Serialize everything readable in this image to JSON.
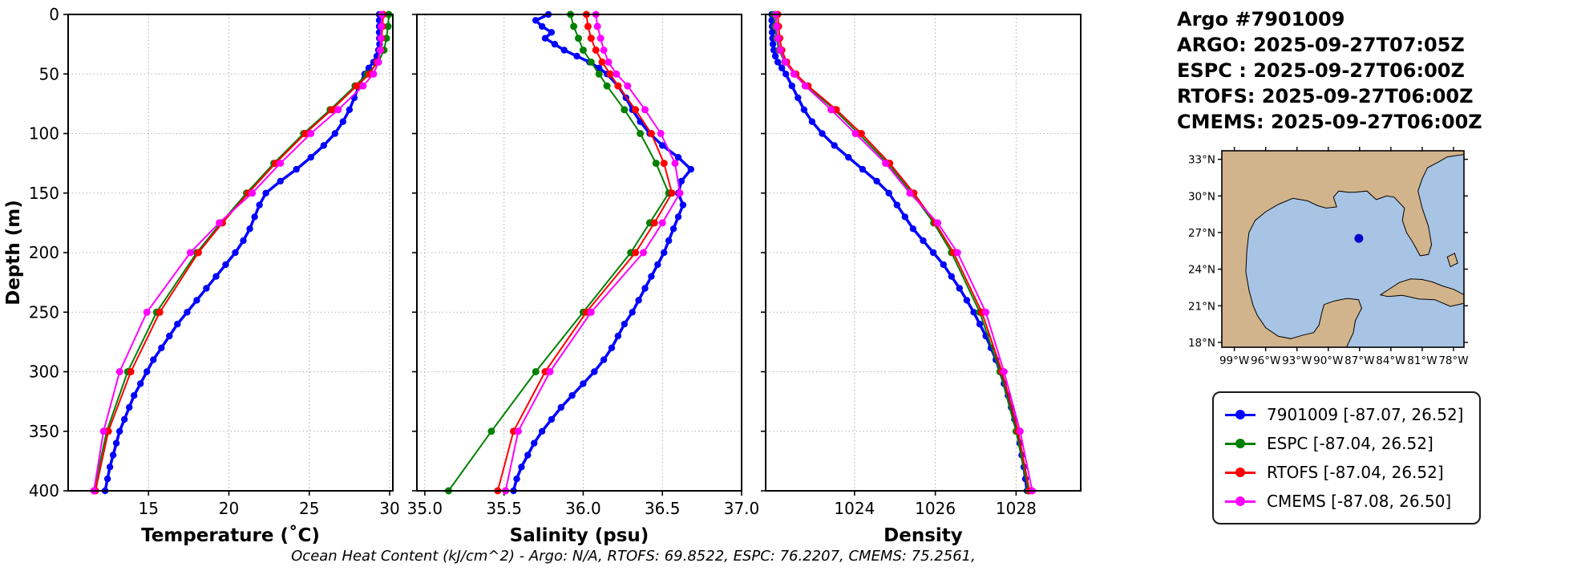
{
  "title_block": {
    "line1": "Argo #7901009",
    "line2": "ARGO: 2025-09-27T07:05Z",
    "line3": "ESPC : 2025-09-27T06:00Z",
    "line4": "RTOFS: 2025-09-27T06:00Z",
    "line5": "CMEMS: 2025-09-27T06:00Z"
  },
  "footer": "Ocean Heat Content (kJ/cm^2) - Argo: N/A,  RTOFS: 69.8522,  ESPC: 76.2207,  CMEMS: 75.2561,",
  "legend": {
    "entries": [
      {
        "label": "7901009 [-87.07, 26.52]",
        "color": "#0000ff"
      },
      {
        "label": "ESPC [-87.04, 26.52]",
        "color": "#008000"
      },
      {
        "label": "RTOFS [-87.04, 26.52]",
        "color": "#ff0000"
      },
      {
        "label": "CMEMS [-87.08, 26.50]",
        "color": "#ff00ff"
      }
    ]
  },
  "map": {
    "lat_tick_labels": [
      "33°N",
      "30°N",
      "27°N",
      "24°N",
      "21°N",
      "18°N"
    ],
    "lat_tick_values": [
      33,
      30,
      27,
      24,
      21,
      18
    ],
    "lon_tick_labels": [
      "99°W",
      "96°W",
      "93°W",
      "90°W",
      "87°W",
      "84°W",
      "81°W",
      "78°W"
    ],
    "lon_tick_values": [
      -99,
      -96,
      -93,
      -90,
      -87,
      -84,
      -81,
      -78
    ],
    "marker": {
      "lon": -87.07,
      "lat": 26.52,
      "color": "#0000cd"
    },
    "land_color": "#d2b48c",
    "water_color": "#a8c4e4"
  },
  "chart_data": [
    {
      "id": "temperature",
      "type": "line",
      "xlabel": "Temperature (˚C)",
      "ylabel": "Depth (m)",
      "xlim": [
        10.0,
        30.2
      ],
      "ylim": [
        0,
        400
      ],
      "y_inverted": true,
      "grid": true,
      "legend_position": "outside-right",
      "xtick_values": [
        15,
        20,
        25,
        30
      ],
      "xtick_labels": [
        "15",
        "20",
        "25",
        "30"
      ],
      "ytick_values": [
        0,
        50,
        100,
        150,
        200,
        250,
        300,
        350,
        400
      ],
      "ytick_labels": [
        "0",
        "50",
        "100",
        "150",
        "200",
        "250",
        "300",
        "350",
        "400"
      ],
      "series": [
        {
          "name": "7901009",
          "color": "#0000ff",
          "width": 3.5,
          "marker_r": 4.2,
          "depth": [
            0,
            5,
            10,
            15,
            20,
            25,
            30,
            35,
            40,
            45,
            50,
            60,
            70,
            80,
            90,
            100,
            110,
            120,
            130,
            140,
            150,
            160,
            170,
            180,
            190,
            200,
            210,
            220,
            230,
            240,
            250,
            260,
            270,
            280,
            290,
            300,
            310,
            320,
            330,
            340,
            350,
            360,
            370,
            380,
            390,
            400
          ],
          "values": [
            29.35,
            29.35,
            29.35,
            29.35,
            29.36,
            29.37,
            29.3,
            29.2,
            29.0,
            28.7,
            28.45,
            28.1,
            27.8,
            27.5,
            27.1,
            26.6,
            25.9,
            25.1,
            24.2,
            23.2,
            22.3,
            21.9,
            21.6,
            21.3,
            20.9,
            20.4,
            19.8,
            19.2,
            18.6,
            18.0,
            17.4,
            16.8,
            16.3,
            15.8,
            15.3,
            14.9,
            14.5,
            14.1,
            13.8,
            13.5,
            13.2,
            13.0,
            12.8,
            12.6,
            12.45,
            12.3
          ]
        },
        {
          "name": "ESPC",
          "color": "#008000",
          "width": 2,
          "marker_r": 4.5,
          "depth": [
            0,
            10,
            20,
            30,
            40,
            50,
            60,
            80,
            100,
            125,
            150,
            175,
            200,
            250,
            300,
            350,
            400
          ],
          "values": [
            29.95,
            29.9,
            29.8,
            29.65,
            29.3,
            28.6,
            27.85,
            26.3,
            24.65,
            22.8,
            21.1,
            19.5,
            18.0,
            15.5,
            13.7,
            12.4,
            11.6
          ]
        },
        {
          "name": "RTOFS",
          "color": "#ff0000",
          "width": 2,
          "marker_r": 4.5,
          "depth": [
            0,
            10,
            20,
            30,
            40,
            50,
            60,
            80,
            100,
            125,
            150,
            175,
            200,
            250,
            300,
            350,
            400
          ],
          "values": [
            29.6,
            29.55,
            29.5,
            29.45,
            29.2,
            28.75,
            27.95,
            26.4,
            24.75,
            22.9,
            21.2,
            19.6,
            18.1,
            15.7,
            13.9,
            12.5,
            11.7
          ]
        },
        {
          "name": "CMEMS",
          "color": "#ff00ff",
          "width": 2,
          "marker_r": 4.5,
          "depth": [
            0,
            10,
            20,
            30,
            40,
            50,
            60,
            80,
            100,
            125,
            150,
            175,
            200,
            250,
            300,
            350,
            400
          ],
          "values": [
            29.5,
            29.48,
            29.45,
            29.42,
            29.3,
            29.0,
            28.35,
            26.8,
            25.1,
            23.2,
            21.45,
            19.4,
            17.6,
            14.9,
            13.2,
            12.2,
            11.6
          ]
        }
      ]
    },
    {
      "id": "salinity",
      "type": "line",
      "xlabel": "Salinity (psu)",
      "ylabel": "Depth (m)",
      "xlim": [
        34.95,
        37.0
      ],
      "ylim": [
        0,
        400
      ],
      "y_inverted": true,
      "grid": true,
      "xtick_values": [
        35.0,
        35.5,
        36.0,
        36.5,
        37.0
      ],
      "xtick_labels": [
        "35.0",
        "35.5",
        "36.0",
        "36.5",
        "37.0"
      ],
      "ytick_values": [
        0,
        50,
        100,
        150,
        200,
        250,
        300,
        350,
        400
      ],
      "ytick_labels": [
        "0",
        "50",
        "100",
        "150",
        "200",
        "250",
        "300",
        "350",
        "400"
      ],
      "series": [
        {
          "name": "7901009",
          "color": "#0000ff",
          "width": 3.5,
          "marker_r": 4.2,
          "depth": [
            0,
            5,
            10,
            15,
            20,
            25,
            30,
            35,
            40,
            45,
            50,
            60,
            70,
            80,
            90,
            100,
            110,
            120,
            130,
            140,
            150,
            160,
            170,
            180,
            190,
            200,
            210,
            220,
            230,
            240,
            250,
            260,
            270,
            280,
            290,
            300,
            310,
            320,
            330,
            340,
            350,
            360,
            370,
            380,
            390,
            400
          ],
          "values": [
            35.78,
            35.7,
            35.74,
            35.8,
            35.76,
            35.82,
            35.88,
            35.96,
            36.04,
            36.1,
            36.15,
            36.22,
            36.27,
            36.31,
            36.36,
            36.42,
            36.5,
            36.6,
            36.68,
            36.62,
            36.6,
            36.63,
            36.6,
            36.57,
            36.54,
            36.51,
            36.47,
            36.43,
            36.39,
            36.35,
            36.31,
            36.26,
            36.22,
            36.18,
            36.13,
            36.07,
            36.0,
            35.93,
            35.86,
            35.8,
            35.74,
            35.69,
            35.65,
            35.61,
            35.58,
            35.56
          ]
        },
        {
          "name": "ESPC",
          "color": "#008000",
          "width": 2,
          "marker_r": 4.5,
          "depth": [
            0,
            10,
            20,
            30,
            40,
            50,
            60,
            80,
            100,
            125,
            150,
            175,
            200,
            250,
            300,
            350,
            400
          ],
          "values": [
            35.92,
            35.94,
            35.97,
            36.0,
            36.05,
            36.1,
            36.15,
            36.26,
            36.36,
            36.46,
            36.54,
            36.42,
            36.3,
            36.0,
            35.7,
            35.42,
            35.15
          ]
        },
        {
          "name": "RTOFS",
          "color": "#ff0000",
          "width": 2,
          "marker_r": 4.5,
          "depth": [
            0,
            10,
            20,
            30,
            40,
            50,
            60,
            80,
            100,
            125,
            150,
            175,
            200,
            250,
            300,
            350,
            400
          ],
          "values": [
            36.02,
            36.03,
            36.05,
            36.08,
            36.12,
            36.17,
            36.22,
            36.33,
            36.43,
            36.51,
            36.56,
            36.45,
            36.33,
            36.02,
            35.76,
            35.56,
            35.46
          ]
        },
        {
          "name": "CMEMS",
          "color": "#ff00ff",
          "width": 2,
          "marker_r": 4.5,
          "depth": [
            0,
            10,
            20,
            30,
            40,
            50,
            60,
            80,
            100,
            125,
            150,
            175,
            200,
            250,
            300,
            350,
            400
          ],
          "values": [
            36.08,
            36.09,
            36.11,
            36.13,
            36.16,
            36.21,
            36.28,
            36.39,
            36.49,
            36.58,
            36.61,
            36.5,
            36.38,
            36.05,
            35.79,
            35.59,
            35.51
          ]
        }
      ]
    },
    {
      "id": "density",
      "type": "line",
      "xlabel": "Density",
      "ylabel": "Depth (m)",
      "xlim": [
        1021.8,
        1029.6
      ],
      "ylim": [
        0,
        400
      ],
      "y_inverted": true,
      "grid": true,
      "xtick_values": [
        1024,
        1026,
        1028
      ],
      "xtick_labels": [
        "1024",
        "1026",
        "1028"
      ],
      "ytick_values": [
        0,
        50,
        100,
        150,
        200,
        250,
        300,
        350,
        400
      ],
      "ytick_labels": [
        "0",
        "50",
        "100",
        "150",
        "200",
        "250",
        "300",
        "350",
        "400"
      ],
      "series": [
        {
          "name": "7901009",
          "color": "#0000ff",
          "width": 3.5,
          "marker_r": 4.2,
          "depth": [
            0,
            5,
            10,
            15,
            20,
            25,
            30,
            35,
            40,
            45,
            50,
            60,
            70,
            80,
            90,
            100,
            110,
            120,
            130,
            140,
            150,
            160,
            170,
            180,
            190,
            200,
            210,
            220,
            230,
            240,
            250,
            260,
            270,
            280,
            290,
            300,
            310,
            320,
            330,
            340,
            350,
            360,
            370,
            380,
            390,
            400
          ],
          "values": [
            1021.95,
            1021.95,
            1021.96,
            1021.96,
            1021.97,
            1021.98,
            1022.0,
            1022.04,
            1022.1,
            1022.2,
            1022.3,
            1022.45,
            1022.6,
            1022.75,
            1022.95,
            1023.2,
            1023.5,
            1023.85,
            1024.2,
            1024.55,
            1024.85,
            1025.05,
            1025.25,
            1025.45,
            1025.7,
            1025.95,
            1026.2,
            1026.4,
            1026.6,
            1026.78,
            1026.95,
            1027.1,
            1027.25,
            1027.38,
            1027.5,
            1027.6,
            1027.7,
            1027.8,
            1027.88,
            1027.96,
            1028.03,
            1028.09,
            1028.14,
            1028.19,
            1028.23,
            1028.27
          ]
        },
        {
          "name": "ESPC",
          "color": "#008000",
          "width": 2,
          "marker_r": 4.5,
          "depth": [
            0,
            10,
            20,
            30,
            40,
            50,
            60,
            80,
            100,
            125,
            150,
            175,
            200,
            250,
            300,
            350,
            400
          ],
          "values": [
            1022.0,
            1022.03,
            1022.07,
            1022.13,
            1022.27,
            1022.52,
            1022.82,
            1023.5,
            1024.1,
            1024.82,
            1025.42,
            1025.96,
            1026.4,
            1027.1,
            1027.6,
            1028.0,
            1028.3
          ]
        },
        {
          "name": "RTOFS",
          "color": "#ff0000",
          "width": 2,
          "marker_r": 4.5,
          "depth": [
            0,
            10,
            20,
            30,
            40,
            50,
            60,
            80,
            100,
            125,
            150,
            175,
            200,
            250,
            300,
            350,
            400
          ],
          "values": [
            1022.1,
            1022.12,
            1022.15,
            1022.2,
            1022.32,
            1022.55,
            1022.85,
            1023.55,
            1024.17,
            1024.87,
            1025.47,
            1026.0,
            1026.45,
            1027.15,
            1027.65,
            1028.05,
            1028.33
          ]
        },
        {
          "name": "CMEMS",
          "color": "#ff00ff",
          "width": 2,
          "marker_r": 4.5,
          "depth": [
            0,
            10,
            20,
            30,
            40,
            50,
            60,
            80,
            100,
            125,
            150,
            175,
            200,
            250,
            300,
            350,
            400
          ],
          "values": [
            1022.05,
            1022.07,
            1022.1,
            1022.16,
            1022.28,
            1022.5,
            1022.78,
            1023.42,
            1024.02,
            1024.77,
            1025.37,
            1026.06,
            1026.55,
            1027.25,
            1027.7,
            1028.1,
            1028.4
          ]
        }
      ]
    }
  ]
}
